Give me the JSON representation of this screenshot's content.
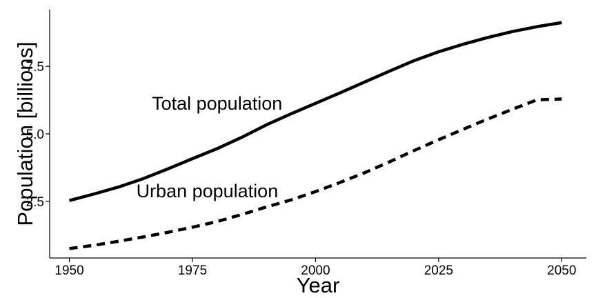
{
  "chart_data": {
    "type": "line",
    "title": "",
    "xlabel": "Year",
    "ylabel": "Population [billions]",
    "xlim": [
      1946,
      2055
    ],
    "ylim": [
      0.4,
      9.6
    ],
    "x_ticks": [
      1950,
      1975,
      2000,
      2025,
      2050
    ],
    "x_tick_labels": [
      "1950",
      "1975",
      "2000",
      "2025",
      "2050"
    ],
    "y_ticks": [
      2.5,
      5.0,
      7.5
    ],
    "y_tick_labels": [
      "2.5",
      "5.0",
      "7.5"
    ],
    "grid": false,
    "legend": "none",
    "x": [
      1950,
      1955,
      1960,
      1965,
      1970,
      1975,
      1980,
      1985,
      1990,
      1995,
      2000,
      2005,
      2010,
      2015,
      2020,
      2025,
      2030,
      2035,
      2040,
      2045,
      2050
    ],
    "series": [
      {
        "name": "Total population",
        "style": "solid",
        "color": "#000000",
        "values": [
          2.53,
          2.77,
          3.03,
          3.34,
          3.7,
          4.08,
          4.45,
          4.87,
          5.33,
          5.74,
          6.13,
          6.52,
          6.92,
          7.32,
          7.71,
          8.04,
          8.32,
          8.57,
          8.79,
          8.97,
          9.12
        ]
      },
      {
        "name": "Urban population",
        "style": "dashed",
        "color": "#000000",
        "values": [
          0.75,
          0.87,
          1.02,
          1.18,
          1.35,
          1.54,
          1.75,
          2.01,
          2.29,
          2.55,
          2.86,
          3.2,
          3.56,
          3.96,
          4.38,
          4.78,
          5.17,
          5.55,
          5.91,
          6.26,
          6.29
        ]
      }
    ],
    "annotations": [
      {
        "text": "Total population",
        "series": "Total population",
        "anchor_x": 1980,
        "anchor_y": 5.9
      },
      {
        "text": "Urban population",
        "series": "Urban population",
        "anchor_x": 1978,
        "anchor_y": 2.65
      }
    ]
  }
}
